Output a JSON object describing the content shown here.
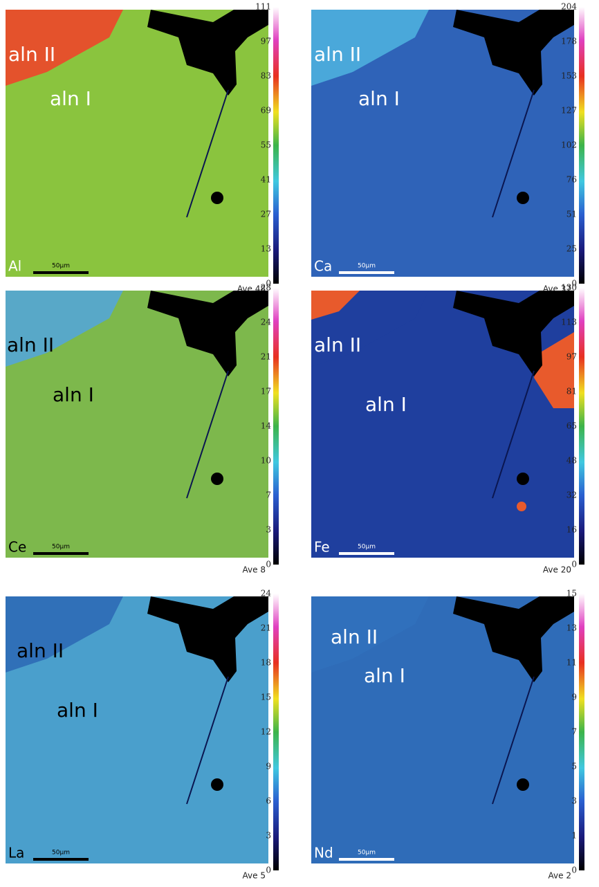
{
  "panels": [
    {
      "element": "Al",
      "phase_2": "aln II",
      "phase_1": "aln I",
      "scale_bar": "50µm",
      "average": "Ave 48",
      "colorbar_ticks": [
        111,
        97,
        83,
        69,
        55,
        41,
        27,
        13,
        0
      ]
    },
    {
      "element": "Ca",
      "phase_2": "aln II",
      "phase_1": "aln I",
      "scale_bar": "50µm",
      "average": "Ave 37",
      "colorbar_ticks": [
        204,
        178,
        153,
        127,
        102,
        76,
        51,
        25,
        0
      ]
    },
    {
      "element": "Ce",
      "phase_2": "aln II",
      "phase_1": "aln I",
      "scale_bar": "50µm",
      "average": "Ave 8",
      "colorbar_ticks": [
        28,
        24,
        21,
        17,
        14,
        10,
        7,
        3,
        0
      ]
    },
    {
      "element": "Fe",
      "phase_2": "aln II",
      "phase_1": "aln I",
      "scale_bar": "50µm",
      "average": "Ave 20",
      "colorbar_ticks": [
        130,
        113,
        97,
        81,
        65,
        48,
        32,
        16,
        0
      ]
    },
    {
      "element": "La",
      "phase_2": "aln II",
      "phase_1": "aln I",
      "scale_bar": "50µm",
      "average": "Ave 5",
      "colorbar_ticks": [
        24,
        21,
        18,
        15,
        12,
        9,
        6,
        3,
        0
      ]
    },
    {
      "element": "Nd",
      "phase_2": "aln II",
      "phase_1": "aln I",
      "scale_bar": "50µm",
      "average": "Ave 2",
      "colorbar_ticks": [
        15,
        13,
        11,
        9,
        7,
        5,
        3,
        1,
        0
      ]
    }
  ]
}
